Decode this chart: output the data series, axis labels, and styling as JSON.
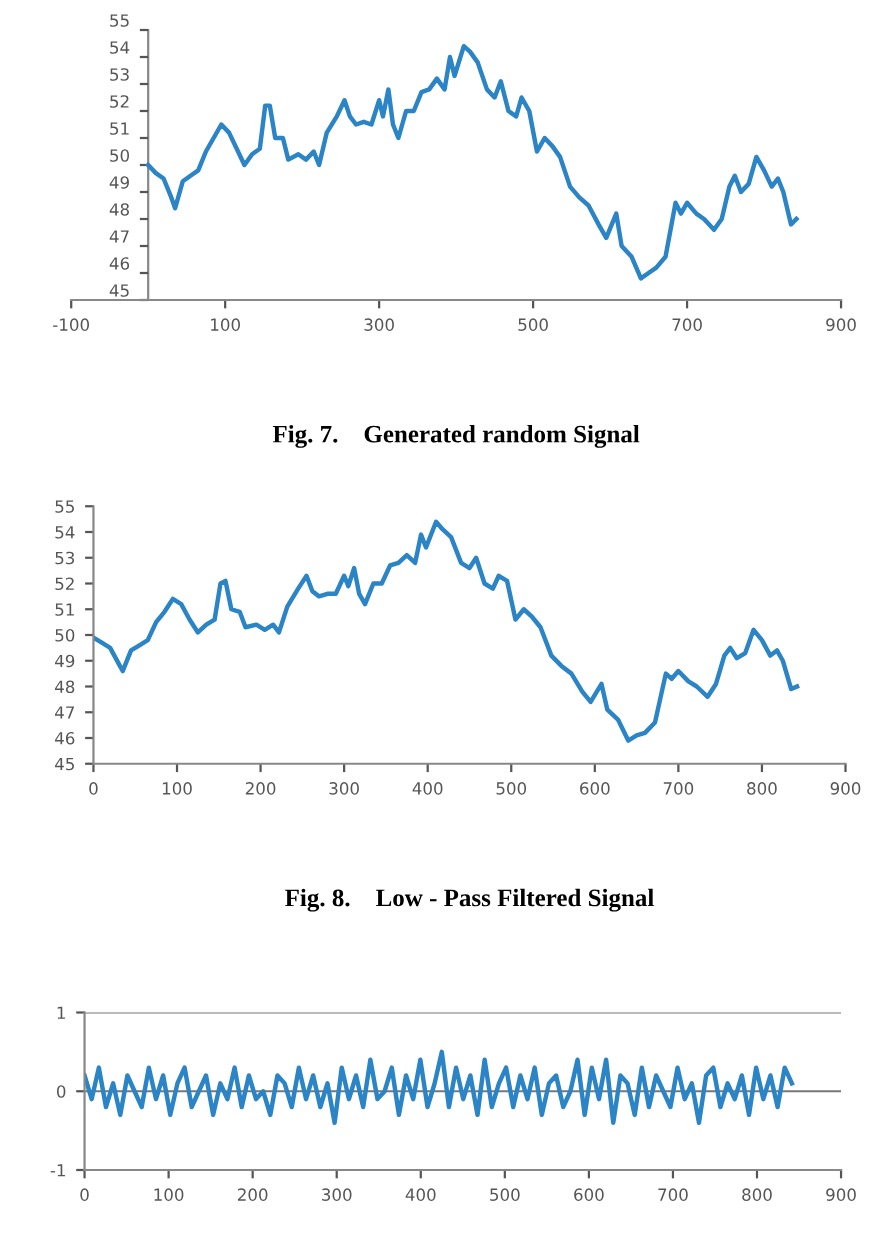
{
  "chart_data": [
    {
      "type": "line",
      "annotations": [
        "Fig. 7.    Generated random Signal"
      ],
      "xlim": [
        -100,
        900
      ],
      "xticks": [
        -100,
        100,
        300,
        500,
        700,
        900
      ],
      "ylim": [
        45,
        55
      ],
      "yticks": [
        45,
        46,
        47,
        48,
        49,
        50,
        51,
        52,
        53,
        54,
        55
      ],
      "grid": false,
      "legend": false,
      "series": [
        {
          "color": "#2a84c6",
          "x": [
            0,
            10,
            20,
            30,
            35,
            45,
            55,
            65,
            75,
            85,
            95,
            105,
            115,
            125,
            135,
            145,
            152,
            158,
            165,
            175,
            182,
            195,
            205,
            215,
            222,
            232,
            245,
            255,
            262,
            270,
            280,
            290,
            300,
            305,
            312,
            318,
            325,
            335,
            345,
            355,
            365,
            375,
            385,
            392,
            398,
            410,
            418,
            428,
            440,
            450,
            458,
            468,
            478,
            485,
            495,
            505,
            515,
            525,
            535,
            548,
            560,
            572,
            585,
            595,
            608,
            615,
            628,
            640,
            650,
            660,
            672,
            685,
            692,
            700,
            712,
            722,
            735,
            745,
            755,
            762,
            770,
            780,
            790,
            800,
            810,
            818,
            825,
            835,
            842
          ],
          "values": [
            50,
            49.7,
            49.5,
            48.8,
            48.4,
            49.4,
            49.6,
            49.8,
            50.5,
            51,
            51.5,
            51.2,
            50.6,
            50,
            50.4,
            50.6,
            52.2,
            52.2,
            51,
            51,
            50.2,
            50.4,
            50.2,
            50.5,
            50,
            51.2,
            51.8,
            52.4,
            51.8,
            51.5,
            51.6,
            51.5,
            52.4,
            51.8,
            52.8,
            51.5,
            51,
            52,
            52,
            52.7,
            52.8,
            53.2,
            52.8,
            54,
            53.3,
            54.4,
            54.2,
            53.8,
            52.8,
            52.5,
            53.1,
            52,
            51.8,
            52.5,
            52,
            50.5,
            51,
            50.7,
            50.3,
            49.2,
            48.8,
            48.5,
            47.8,
            47.3,
            48.2,
            47,
            46.6,
            45.8,
            46,
            46.2,
            46.6,
            48.6,
            48.2,
            48.6,
            48.2,
            48,
            47.6,
            48,
            49.2,
            49.6,
            49,
            49.3,
            50.3,
            49.8,
            49.2,
            49.5,
            49,
            47.8,
            48
          ]
        }
      ]
    },
    {
      "type": "line",
      "annotations": [
        "Fig. 8.    Low - Pass Filtered Signal"
      ],
      "xlim": [
        0,
        900
      ],
      "xticks": [
        0,
        100,
        200,
        300,
        400,
        500,
        600,
        700,
        800,
        900
      ],
      "ylim": [
        45,
        55
      ],
      "yticks": [
        45,
        46,
        47,
        48,
        49,
        50,
        51,
        52,
        53,
        54,
        55
      ],
      "grid": false,
      "legend": false,
      "series": [
        {
          "color": "#2a84c6",
          "x": [
            0,
            10,
            20,
            30,
            35,
            45,
            55,
            65,
            75,
            85,
            95,
            105,
            115,
            125,
            135,
            145,
            152,
            158,
            165,
            175,
            182,
            195,
            205,
            215,
            222,
            232,
            245,
            255,
            262,
            270,
            280,
            290,
            300,
            305,
            312,
            318,
            325,
            335,
            345,
            355,
            365,
            375,
            385,
            392,
            398,
            410,
            418,
            428,
            440,
            450,
            458,
            468,
            478,
            485,
            495,
            505,
            515,
            525,
            535,
            548,
            560,
            572,
            585,
            595,
            608,
            615,
            628,
            640,
            650,
            660,
            672,
            685,
            692,
            700,
            712,
            722,
            735,
            745,
            755,
            762,
            770,
            780,
            790,
            800,
            810,
            818,
            825,
            835,
            842
          ],
          "values": [
            49.9,
            49.7,
            49.5,
            48.9,
            48.6,
            49.4,
            49.6,
            49.8,
            50.5,
            50.9,
            51.4,
            51.2,
            50.6,
            50.1,
            50.4,
            50.6,
            52,
            52.1,
            51,
            50.9,
            50.3,
            50.4,
            50.2,
            50.4,
            50.1,
            51.1,
            51.8,
            52.3,
            51.7,
            51.5,
            51.6,
            51.6,
            52.3,
            51.9,
            52.6,
            51.6,
            51.2,
            52,
            52,
            52.7,
            52.8,
            53.1,
            52.8,
            53.9,
            53.4,
            54.4,
            54.1,
            53.8,
            52.8,
            52.6,
            53,
            52,
            51.8,
            52.3,
            52.1,
            50.6,
            51,
            50.7,
            50.3,
            49.2,
            48.8,
            48.5,
            47.8,
            47.4,
            48.1,
            47.1,
            46.7,
            45.9,
            46.1,
            46.2,
            46.6,
            48.5,
            48.3,
            48.6,
            48.2,
            48,
            47.6,
            48.1,
            49.2,
            49.5,
            49.1,
            49.3,
            50.2,
            49.8,
            49.2,
            49.4,
            49,
            47.9,
            48
          ]
        }
      ]
    },
    {
      "type": "line",
      "xlim": [
        0,
        900
      ],
      "xticks": [
        0,
        100,
        200,
        300,
        400,
        500,
        600,
        700,
        800,
        900
      ],
      "ylim": [
        -1,
        1
      ],
      "yticks": [
        -1,
        0,
        1
      ],
      "grid": "y",
      "legend": false,
      "series": [
        {
          "color": "#2a84c6",
          "x": [
            0,
            8.5,
            17,
            25.5,
            34,
            42.5,
            51,
            59.5,
            68,
            76.5,
            85,
            93.5,
            102,
            110.5,
            119,
            127.5,
            136,
            144.5,
            153,
            161.5,
            170,
            178.5,
            187,
            195.5,
            204,
            212.5,
            221,
            229.5,
            238,
            246.5,
            255,
            263.5,
            272,
            280.5,
            289,
            297.5,
            306,
            314.5,
            323,
            331.5,
            340,
            348.5,
            357,
            365.5,
            374,
            382.5,
            391,
            399.5,
            408,
            416.5,
            425,
            433.5,
            442,
            450.5,
            459,
            467.5,
            476,
            484.5,
            493,
            501.5,
            510,
            518.5,
            527,
            535.5,
            544,
            552.5,
            561,
            569.5,
            578,
            586.5,
            595,
            603.5,
            612,
            620.5,
            629,
            637.5,
            646,
            654.5,
            663,
            671.5,
            680,
            688.5,
            697,
            705.5,
            714,
            722.5,
            731,
            739.5,
            748,
            756.5,
            765,
            773.5,
            782,
            790.5,
            799,
            807.5,
            816,
            824.5,
            833,
            841.5
          ],
          "values": [
            0.2,
            -0.1,
            0.3,
            -0.2,
            0.1,
            -0.3,
            0.2,
            0.0,
            -0.2,
            0.3,
            -0.1,
            0.2,
            -0.3,
            0.1,
            0.3,
            -0.2,
            0.0,
            0.2,
            -0.3,
            0.1,
            -0.1,
            0.3,
            -0.2,
            0.2,
            -0.1,
            0.0,
            -0.3,
            0.2,
            0.1,
            -0.2,
            0.3,
            -0.1,
            0.2,
            -0.2,
            0.1,
            -0.4,
            0.3,
            -0.1,
            0.2,
            -0.2,
            0.4,
            -0.1,
            0.0,
            0.3,
            -0.3,
            0.2,
            -0.1,
            0.4,
            -0.2,
            0.1,
            0.5,
            -0.2,
            0.3,
            -0.1,
            0.2,
            -0.3,
            0.4,
            -0.2,
            0.1,
            0.3,
            -0.2,
            0.2,
            -0.1,
            0.3,
            -0.3,
            0.1,
            0.2,
            -0.2,
            0.0,
            0.4,
            -0.3,
            0.3,
            -0.1,
            0.4,
            -0.4,
            0.2,
            0.1,
            -0.3,
            0.3,
            -0.2,
            0.2,
            0.0,
            -0.2,
            0.3,
            -0.1,
            0.1,
            -0.4,
            0.2,
            0.3,
            -0.2,
            0.1,
            -0.1,
            0.2,
            -0.3,
            0.3,
            -0.1,
            0.2,
            -0.2,
            0.3,
            0.1
          ]
        }
      ]
    }
  ]
}
